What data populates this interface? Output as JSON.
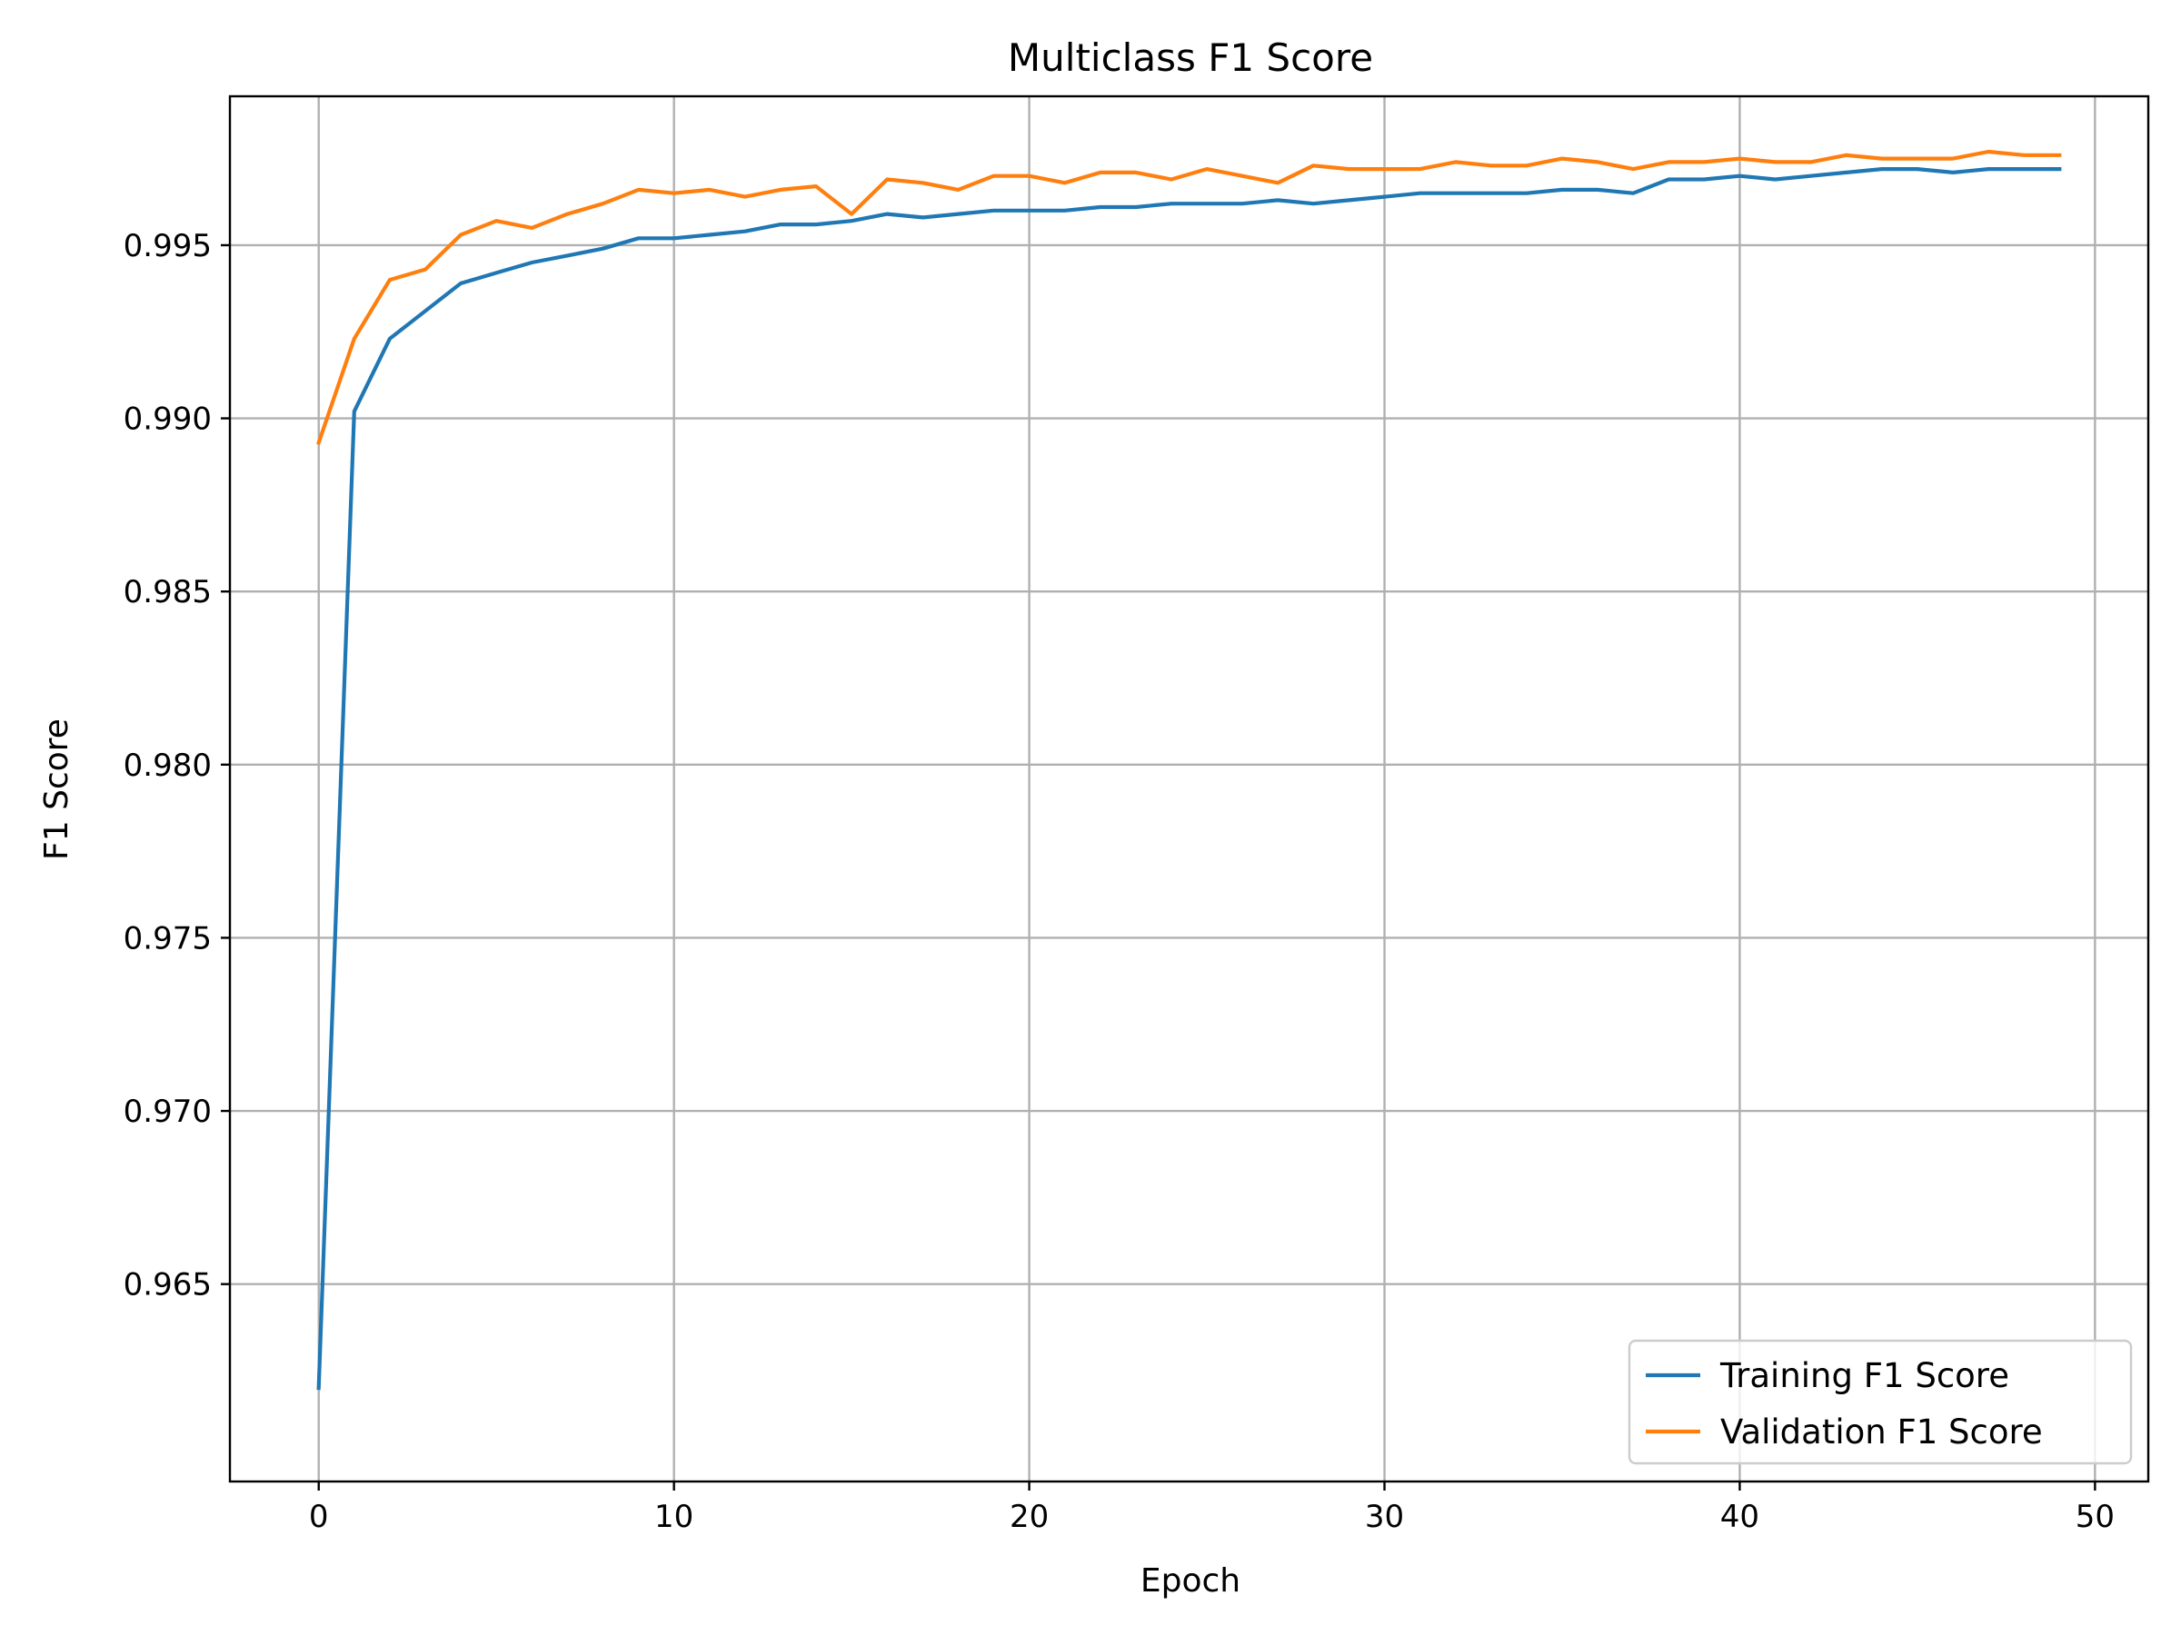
{
  "chart_data": {
    "type": "line",
    "title": "Multiclass F1 Score",
    "xlabel": "Epoch",
    "ylabel": "F1 Score",
    "xlim": [
      -2.5,
      51.5
    ],
    "ylim": [
      0.9593,
      0.9993
    ],
    "xticks": [
      0,
      10,
      20,
      30,
      40,
      50
    ],
    "xtick_labels": [
      "0",
      "10",
      "20",
      "30",
      "40",
      "50"
    ],
    "yticks": [
      0.965,
      0.97,
      0.975,
      0.98,
      0.985,
      0.99,
      0.995
    ],
    "ytick_labels": [
      "0.965",
      "0.970",
      "0.975",
      "0.980",
      "0.985",
      "0.990",
      "0.995"
    ],
    "grid": true,
    "legend": "lower-right",
    "x": [
      0,
      1,
      2,
      3,
      4,
      5,
      6,
      7,
      8,
      9,
      10,
      11,
      12,
      13,
      14,
      15,
      16,
      17,
      18,
      19,
      20,
      21,
      22,
      23,
      24,
      25,
      26,
      27,
      28,
      29,
      30,
      31,
      32,
      33,
      34,
      35,
      36,
      37,
      38,
      39,
      40,
      41,
      42,
      43,
      44,
      45,
      46,
      47,
      48,
      49
    ],
    "series": [
      {
        "name": "Training F1 Score",
        "color": "#1f77b4",
        "values": [
          0.962,
          0.9902,
          0.9923,
          0.9931,
          0.9939,
          0.9942,
          0.9945,
          0.9947,
          0.9949,
          0.9952,
          0.9952,
          0.9953,
          0.9954,
          0.9956,
          0.9956,
          0.9957,
          0.9959,
          0.9958,
          0.9959,
          0.996,
          0.996,
          0.996,
          0.9961,
          0.9961,
          0.9962,
          0.9962,
          0.9962,
          0.9963,
          0.9962,
          0.9963,
          0.9964,
          0.9965,
          0.9965,
          0.9965,
          0.9965,
          0.9966,
          0.9966,
          0.9965,
          0.9969,
          0.9969,
          0.997,
          0.9969,
          0.997,
          0.9971,
          0.9972,
          0.9972,
          0.9971,
          0.9972,
          0.9972,
          0.9972
        ]
      },
      {
        "name": "Validation F1 Score",
        "color": "#ff7f0e",
        "values": [
          0.9893,
          0.9923,
          0.994,
          0.9943,
          0.9953,
          0.9957,
          0.9955,
          0.9959,
          0.9962,
          0.9966,
          0.9965,
          0.9966,
          0.9964,
          0.9966,
          0.9967,
          0.9959,
          0.9969,
          0.9968,
          0.9966,
          0.997,
          0.997,
          0.9968,
          0.9971,
          0.9971,
          0.9969,
          0.9972,
          0.997,
          0.9968,
          0.9973,
          0.9972,
          0.9972,
          0.9972,
          0.9974,
          0.9973,
          0.9973,
          0.9975,
          0.9974,
          0.9972,
          0.9974,
          0.9974,
          0.9975,
          0.9974,
          0.9974,
          0.9976,
          0.9975,
          0.9975,
          0.9975,
          0.9977,
          0.9976,
          0.9976
        ]
      }
    ]
  }
}
